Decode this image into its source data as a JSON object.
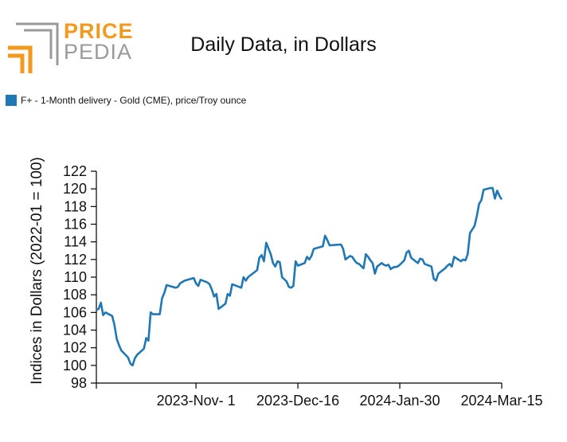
{
  "logo": {
    "word1": "PRICE",
    "word2": "PEDIA"
  },
  "colors": {
    "series": "#1f77b4",
    "logo_orange": "#f39a1e",
    "logo_gray": "#9a9a9a"
  },
  "chart_data": {
    "type": "line",
    "title": "Daily Data, in Dollars",
    "xlabel": "",
    "ylabel": "Indices in Dollars (2022-01 = 100)",
    "x_range": [
      "2023-09-18",
      "2024-03-15"
    ],
    "ylim": [
      98,
      122
    ],
    "y_ticks": [
      98,
      100,
      102,
      104,
      106,
      108,
      110,
      112,
      114,
      116,
      118,
      120,
      122
    ],
    "x_ticks": [
      "2023-Nov- 1",
      "2023-Dec-16",
      "2024-Jan-30",
      "2024-Mar-15"
    ],
    "x_tick_dates": [
      "2023-11-01",
      "2023-12-16",
      "2024-01-30",
      "2024-03-15"
    ],
    "grid": false,
    "legend_position": "top-left",
    "series": [
      {
        "name": "F+ - 1-Month delivery - Gold (CME), price/Troy ounce",
        "points": [
          [
            "2023-09-18",
            106.3
          ],
          [
            "2023-09-19",
            106.4
          ],
          [
            "2023-09-20",
            107.1
          ],
          [
            "2023-09-21",
            105.7
          ],
          [
            "2023-09-22",
            106.0
          ],
          [
            "2023-09-25",
            105.6
          ],
          [
            "2023-09-26",
            104.6
          ],
          [
            "2023-09-27",
            103.0
          ],
          [
            "2023-09-28",
            102.3
          ],
          [
            "2023-09-29",
            101.7
          ],
          [
            "2023-10-02",
            100.9
          ],
          [
            "2023-10-03",
            100.2
          ],
          [
            "2023-10-04",
            100.0
          ],
          [
            "2023-10-05",
            100.8
          ],
          [
            "2023-10-06",
            101.2
          ],
          [
            "2023-10-09",
            101.9
          ],
          [
            "2023-10-10",
            103.1
          ],
          [
            "2023-10-11",
            102.8
          ],
          [
            "2023-10-12",
            106.0
          ],
          [
            "2023-10-13",
            105.8
          ],
          [
            "2023-10-16",
            105.8
          ],
          [
            "2023-10-17",
            107.6
          ],
          [
            "2023-10-18",
            108.2
          ],
          [
            "2023-10-19",
            109.1
          ],
          [
            "2023-10-23",
            108.8
          ],
          [
            "2023-10-24",
            108.9
          ],
          [
            "2023-10-25",
            109.3
          ],
          [
            "2023-10-27",
            109.6
          ],
          [
            "2023-10-31",
            109.9
          ],
          [
            "2023-11-01",
            109.3
          ],
          [
            "2023-11-02",
            109.0
          ],
          [
            "2023-11-03",
            109.7
          ],
          [
            "2023-11-06",
            109.4
          ],
          [
            "2023-11-07",
            109.2
          ],
          [
            "2023-11-08",
            108.6
          ],
          [
            "2023-11-09",
            107.8
          ],
          [
            "2023-11-10",
            108.1
          ],
          [
            "2023-11-11",
            106.4
          ],
          [
            "2023-11-14",
            107.0
          ],
          [
            "2023-11-15",
            108.1
          ],
          [
            "2023-11-16",
            107.9
          ],
          [
            "2023-11-17",
            109.2
          ],
          [
            "2023-11-20",
            108.9
          ],
          [
            "2023-11-21",
            108.8
          ],
          [
            "2023-11-22",
            110.0
          ],
          [
            "2023-11-23",
            109.6
          ],
          [
            "2023-11-24",
            110.0
          ],
          [
            "2023-11-27",
            110.6
          ],
          [
            "2023-11-28",
            110.8
          ],
          [
            "2023-11-29",
            112.2
          ],
          [
            "2023-11-30",
            112.5
          ],
          [
            "2023-12-01",
            111.8
          ],
          [
            "2023-12-02",
            113.9
          ],
          [
            "2023-12-04",
            112.6
          ],
          [
            "2023-12-05",
            111.6
          ],
          [
            "2023-12-06",
            111.2
          ],
          [
            "2023-12-07",
            111.8
          ],
          [
            "2023-12-08",
            111.7
          ],
          [
            "2023-12-09",
            110.0
          ],
          [
            "2023-12-11",
            109.5
          ],
          [
            "2023-12-12",
            108.9
          ],
          [
            "2023-12-13",
            108.8
          ],
          [
            "2023-12-14",
            109.0
          ],
          [
            "2023-12-15",
            111.8
          ],
          [
            "2023-12-16",
            111.3
          ],
          [
            "2023-12-18",
            111.5
          ],
          [
            "2023-12-19",
            111.6
          ],
          [
            "2023-12-20",
            112.3
          ],
          [
            "2023-12-21",
            112.0
          ],
          [
            "2023-12-22",
            112.4
          ],
          [
            "2023-12-23",
            113.2
          ],
          [
            "2023-12-27",
            113.5
          ],
          [
            "2023-12-28",
            114.7
          ],
          [
            "2023-12-29",
            114.2
          ],
          [
            "2023-12-30",
            113.6
          ],
          [
            "2024-01-04",
            113.7
          ],
          [
            "2024-01-05",
            113.2
          ],
          [
            "2024-01-06",
            112.0
          ],
          [
            "2024-01-08",
            112.4
          ],
          [
            "2024-01-09",
            112.3
          ],
          [
            "2024-01-10",
            111.9
          ],
          [
            "2024-01-11",
            111.6
          ],
          [
            "2024-01-12",
            111.5
          ],
          [
            "2024-01-14",
            111.0
          ],
          [
            "2024-01-15",
            112.6
          ],
          [
            "2024-01-16",
            112.3
          ],
          [
            "2024-01-17",
            111.9
          ],
          [
            "2024-01-18",
            111.6
          ],
          [
            "2024-01-19",
            110.4
          ],
          [
            "2024-01-20",
            111.2
          ],
          [
            "2024-01-22",
            111.6
          ],
          [
            "2024-01-23",
            111.4
          ],
          [
            "2024-01-24",
            111.3
          ],
          [
            "2024-01-25",
            111.4
          ],
          [
            "2024-01-26",
            110.9
          ],
          [
            "2024-01-27",
            111.1
          ],
          [
            "2024-01-29",
            111.2
          ],
          [
            "2024-01-30",
            111.4
          ],
          [
            "2024-02-01",
            111.9
          ],
          [
            "2024-02-02",
            112.8
          ],
          [
            "2024-02-03",
            113.0
          ],
          [
            "2024-02-04",
            112.2
          ],
          [
            "2024-02-06",
            111.8
          ],
          [
            "2024-02-07",
            111.6
          ],
          [
            "2024-02-08",
            112.1
          ],
          [
            "2024-02-09",
            112.0
          ],
          [
            "2024-02-10",
            111.5
          ],
          [
            "2024-02-13",
            111.2
          ],
          [
            "2024-02-14",
            109.8
          ],
          [
            "2024-02-15",
            109.6
          ],
          [
            "2024-02-16",
            110.4
          ],
          [
            "2024-02-19",
            111.0
          ],
          [
            "2024-02-20",
            111.3
          ],
          [
            "2024-02-21",
            111.5
          ],
          [
            "2024-02-22",
            111.2
          ],
          [
            "2024-02-23",
            112.3
          ],
          [
            "2024-02-26",
            111.8
          ],
          [
            "2024-02-27",
            112.0
          ],
          [
            "2024-02-28",
            111.9
          ],
          [
            "2024-02-29",
            112.6
          ],
          [
            "2024-03-01",
            115.0
          ],
          [
            "2024-03-03",
            115.8
          ],
          [
            "2024-03-04",
            116.9
          ],
          [
            "2024-03-05",
            118.3
          ],
          [
            "2024-03-06",
            118.7
          ],
          [
            "2024-03-07",
            119.9
          ],
          [
            "2024-03-10",
            120.1
          ],
          [
            "2024-03-11",
            120.1
          ],
          [
            "2024-03-12",
            118.9
          ],
          [
            "2024-03-13",
            119.8
          ],
          [
            "2024-03-14",
            119.2
          ],
          [
            "2024-03-15",
            118.8
          ]
        ]
      }
    ]
  }
}
